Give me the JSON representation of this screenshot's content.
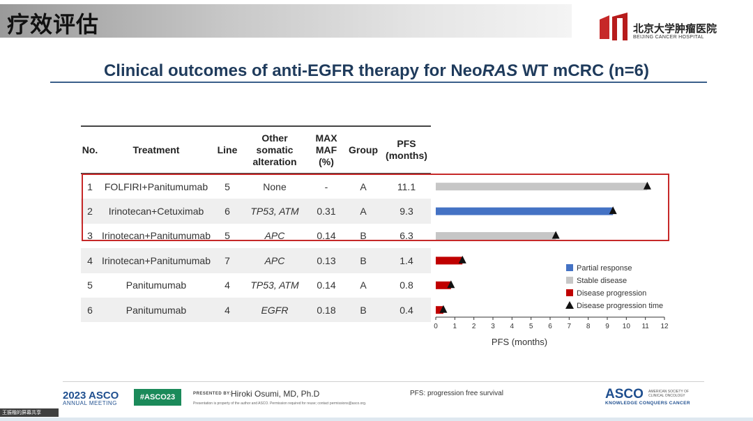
{
  "header": {
    "title": "疗效评估",
    "logo_cn": "北京大学肿瘤医院",
    "logo_en": "BEIJING CANCER HOSPITAL"
  },
  "slide": {
    "title": "Clinical outcomes of anti-EGFR therapy for NeoRAS WT mCRC (n=6)",
    "title_parts": {
      "before": "Clinical outcomes of anti-EGFR therapy for Neo",
      "italic": "RAS",
      "after": " WT mCRC (n=6)"
    }
  },
  "table": {
    "headers": {
      "no": "No.",
      "treatment": "Treatment",
      "line": "Line",
      "other": [
        "Other",
        "somatic",
        "alteration"
      ],
      "maf": [
        "MAX",
        "MAF",
        "(%)"
      ],
      "group": "Group",
      "pfs": [
        "PFS",
        "(months)"
      ]
    },
    "rows": [
      {
        "no": "1",
        "treatment": "FOLFIRI+Panitumumab",
        "line": "5",
        "alteration": "None",
        "maf": "-",
        "group": "A",
        "pfs": "11.1"
      },
      {
        "no": "2",
        "treatment": "Irinotecan+Cetuximab",
        "line": "6",
        "alteration": "TP53, ATM",
        "maf": "0.31",
        "group": "A",
        "pfs": "9.3"
      },
      {
        "no": "3",
        "treatment": "Irinotecan+Panitumumab",
        "line": "5",
        "alteration": "APC",
        "maf": "0.14",
        "group": "B",
        "pfs": "6.3"
      },
      {
        "no": "4",
        "treatment": "Irinotecan+Panitumumab",
        "line": "7",
        "alteration": "APC",
        "maf": "0.13",
        "group": "B",
        "pfs": "1.4"
      },
      {
        "no": "5",
        "treatment": "Panitumumab",
        "line": "4",
        "alteration": "TP53, ATM",
        "maf": "0.14",
        "group": "A",
        "pfs": "0.8"
      },
      {
        "no": "6",
        "treatment": "Panitumumab",
        "line": "4",
        "alteration": "EGFR",
        "maf": "0.18",
        "group": "B",
        "pfs": "0.4"
      }
    ]
  },
  "chart_data": {
    "type": "bar",
    "orientation": "horizontal",
    "categories": [
      "1",
      "2",
      "3",
      "4",
      "5",
      "6"
    ],
    "values": [
      11.1,
      9.3,
      6.3,
      1.4,
      0.8,
      0.4
    ],
    "response": [
      "Stable disease",
      "Partial response",
      "Stable disease",
      "Disease progression",
      "Disease progression",
      "Disease progression"
    ],
    "progression_marker_at": [
      11.1,
      9.3,
      6.3,
      1.4,
      0.8,
      0.4
    ],
    "xlabel": "PFS (months)",
    "xlim": [
      0,
      12
    ],
    "xticks": [
      "0",
      "1",
      "2",
      "3",
      "4",
      "5",
      "6",
      "7",
      "8",
      "9",
      "10",
      "11",
      "12"
    ],
    "grid": false,
    "legend_position": "bottom-right",
    "legend": [
      {
        "label": "Partial response",
        "marker": "square",
        "color": "#4472c4"
      },
      {
        "label": "Stable disease",
        "marker": "square",
        "color": "#c6c6c6"
      },
      {
        "label": "Disease progression",
        "marker": "square",
        "color": "#c00000"
      },
      {
        "label": "Disease progression time",
        "marker": "triangle",
        "color": "#111111"
      }
    ],
    "colors": {
      "Partial response": "#4472c4",
      "Stable disease": "#c6c6c6",
      "Disease progression": "#c00000",
      "marker": "#111111"
    },
    "highlighted_rows": [
      "1",
      "2",
      "3"
    ],
    "highlight_color": "#c62828"
  },
  "footer": {
    "meeting_year": "2023 ASCO",
    "meeting_name": "ANNUAL MEETING",
    "hashtag": "#ASCO23",
    "presented_by": "PRESENTED BY:",
    "presenter": "Hiroki Osumi, MD, Ph.D",
    "notice": "Presentation is property of the author and ASCO. Permission required for reuse; contact permissions@asco.org.",
    "pfs_note": "PFS: progression free survival",
    "asco": "ASCO",
    "society": "AMERICAN SOCIETY OF CLINICAL ONCOLOGY",
    "tagline": "KNOWLEDGE CONQUERS CANCER"
  },
  "screen_share": "王振楷的屏幕共享"
}
